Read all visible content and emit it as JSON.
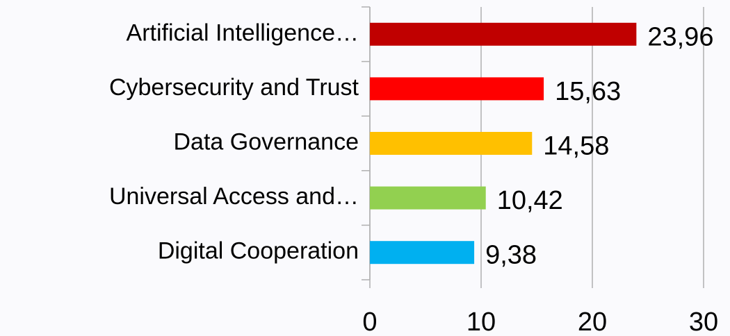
{
  "chart_data": {
    "type": "hbar",
    "categories": [
      "Artificial Intelligence…",
      "Cybersecurity and Trust",
      "Data Governance",
      "Universal Access and…",
      "Digital Cooperation"
    ],
    "values": [
      23.96,
      15.63,
      14.58,
      10.42,
      9.38
    ],
    "value_labels": [
      "23,96",
      "15,63",
      "14,58",
      "10,42",
      "9,38"
    ],
    "colors": [
      "#c00000",
      "#ff0000",
      "#ffc000",
      "#92d050",
      "#00b0f0"
    ],
    "xlim": [
      0,
      30
    ],
    "xticks": [
      0,
      10,
      20,
      30
    ],
    "grid": true
  }
}
